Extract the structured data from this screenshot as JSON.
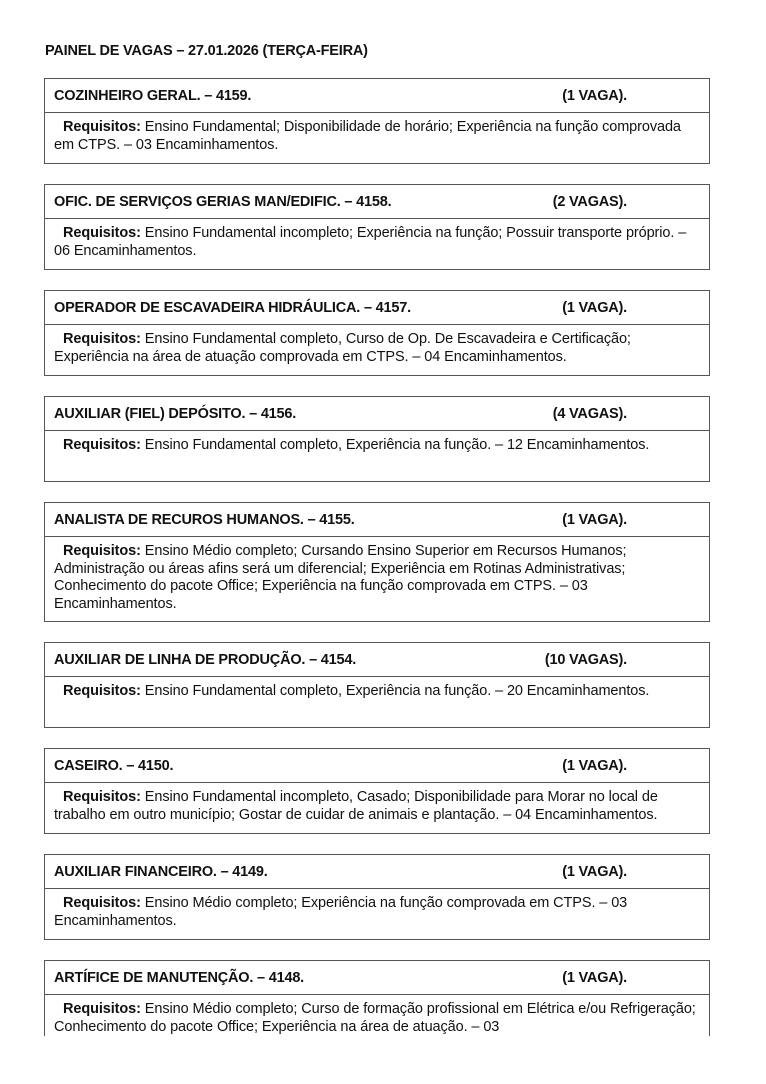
{
  "title": "PAINEL DE VAGAS – 27.01.2026 (TERÇA-FEIRA)",
  "req_label": "Requisitos:",
  "jobs": [
    {
      "title": "COZINHEIRO GERAL. – 4159.",
      "vagas": "(1 VAGA).",
      "req": "Ensino Fundamental; Disponibilidade de horário; Experiência na função comprovada em CTPS. – 03 Encaminhamentos."
    },
    {
      "title": "OFIC. DE SERVIÇOS GERIAS MAN/EDIFIC. – 4158.",
      "vagas": "(2 VAGAS).",
      "req": "Ensino Fundamental incompleto; Experiência na função; Possuir transporte próprio. – 06 Encaminhamentos."
    },
    {
      "title": "OPERADOR DE ESCAVADEIRA HIDRÁULICA. – 4157.",
      "vagas": "(1 VAGA).",
      "req": "Ensino Fundamental completo, Curso de Op. De Escavadeira e Certificação; Experiência na área de atuação comprovada em CTPS. – 04 Encaminhamentos."
    },
    {
      "title": "AUXILIAR (FIEL) DEPÓSITO. – 4156.",
      "vagas": "(4 VAGAS).",
      "req": "Ensino Fundamental completo, Experiência na função. – 12 Encaminhamentos."
    },
    {
      "title": "ANALISTA DE RECUROS HUMANOS. – 4155.",
      "vagas": "(1 VAGA).",
      "req": "Ensino Médio completo; Cursando Ensino Superior em Recursos Humanos; Administração ou áreas afins será um diferencial; Experiência em Rotinas Administrativas; Conhecimento do pacote Office; Experiência na função comprovada em CTPS. – 03 Encaminhamentos."
    },
    {
      "title": "AUXILIAR DE LINHA DE PRODUÇÃO. – 4154.",
      "vagas": "(10 VAGAS).",
      "req": "Ensino Fundamental completo, Experiência na função. – 20 Encaminhamentos."
    },
    {
      "title": "CASEIRO. – 4150.",
      "vagas": "(1 VAGA).",
      "req": "Ensino Fundamental incompleto, Casado; Disponibilidade para Morar no local de trabalho em outro município; Gostar de cuidar de animais e plantação. – 04 Encaminhamentos."
    },
    {
      "title": "AUXILIAR FINANCEIRO. – 4149.",
      "vagas": "(1 VAGA).",
      "req": "Ensino Médio completo; Experiência na função comprovada em CTPS. – 03 Encaminhamentos."
    },
    {
      "title": "ARTÍFICE DE MANUTENÇÃO. – 4148.",
      "vagas": "(1 VAGA).",
      "req": "Ensino Médio completo; Curso de formação profissional em Elétrica e/ou Refrigeração; Conhecimento do pacote Office; Experiência na área de atuação. – 03"
    }
  ]
}
